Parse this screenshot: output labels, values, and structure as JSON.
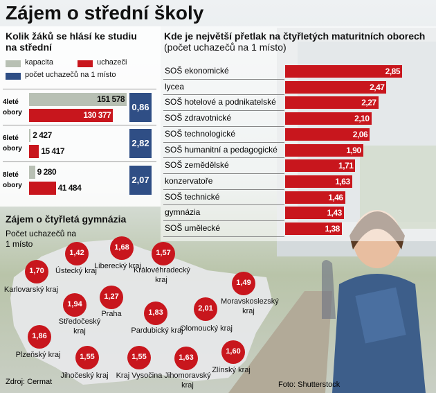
{
  "title": "Zájem o střední školy",
  "source": "Zdroj: Cermat",
  "photo_credit": "Foto: Shutterstock",
  "chart_data": [
    {
      "type": "grouped-bar",
      "title": "Kolik žáků se hlásí ke studiu na střední",
      "categories": [
        "4leté obory",
        "6leté obory",
        "8leté obory"
      ],
      "series": [
        {
          "name": "kapacita",
          "color": "#b8c0b4",
          "values": [
            151578,
            2427,
            9280
          ],
          "value_labels": [
            "151 578",
            "2 427",
            "9 280"
          ]
        },
        {
          "name": "uchazeči",
          "color": "#c8161d",
          "values": [
            130377,
            15417,
            41484
          ],
          "value_labels": [
            "130 377",
            "15 417",
            "41 484"
          ]
        },
        {
          "name": "počet uchazečů na 1 místo",
          "color": "#2f4e85",
          "values": [
            0.86,
            2.82,
            2.07
          ],
          "value_labels": [
            "0,86",
            "2,82",
            "2,07"
          ]
        }
      ]
    },
    {
      "type": "bar",
      "title": "Kde je největší přetlak na čtyřletých maturitních oborech",
      "subtitle": "(počet uchazečů na 1 místo)",
      "categories": [
        "SOŠ ekonomické",
        "lycea",
        "SOŠ hotelové a podnikatelské",
        "SOŠ zdravotnické",
        "SOŠ technologické",
        "SOŠ humanitní a pedagogické",
        "SOŠ zemědělské",
        "konzervatoře",
        "SOŠ technické",
        "gymnázia",
        "SOŠ umělecké"
      ],
      "values": [
        2.85,
        2.47,
        2.27,
        2.1,
        2.06,
        1.9,
        1.71,
        1.63,
        1.46,
        1.43,
        1.38
      ],
      "value_labels": [
        "2,85",
        "2,47",
        "2,27",
        "2,10",
        "2,06",
        "1,90",
        "1,71",
        "1,63",
        "1,46",
        "1,43",
        "1,38"
      ],
      "color": "#c8161d"
    },
    {
      "type": "map",
      "title": "Zájem o čtyřletá gymnázia",
      "subtitle": "Počet uchazečů na 1 místo",
      "categories": [
        "Karlovarský kraj",
        "Ústecký kraj",
        "Liberecký kraj",
        "Královéhradecký kraj",
        "Moravskoslezský kraj",
        "Středočeský kraj",
        "Praha",
        "Pardubický kraj",
        "Olomoucký kraj",
        "Plzeňský kraj",
        "Jihočeský kraj",
        "Kraj Vysočina",
        "Jihomoravský kraj",
        "Zlínský kraj"
      ],
      "values": [
        1.7,
        1.42,
        1.68,
        1.57,
        1.49,
        1.94,
        1.27,
        1.83,
        2.01,
        1.86,
        1.55,
        1.55,
        1.63,
        1.6
      ],
      "value_labels": [
        "1,70",
        "1,42",
        "1,68",
        "1,57",
        "1,49",
        "1,94",
        "1,27",
        "1,83",
        "2,01",
        "1,86",
        "1,55",
        "1,55",
        "1,63",
        "1,60"
      ],
      "color": "#c8161d"
    }
  ]
}
